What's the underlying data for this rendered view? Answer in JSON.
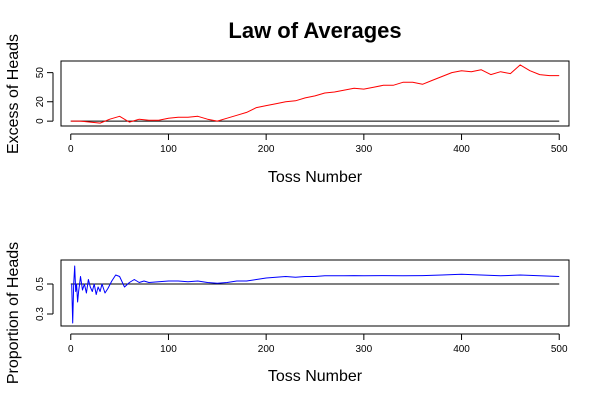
{
  "chart_data": [
    {
      "type": "line",
      "title": "Law of Averages",
      "xlabel": "Toss Number",
      "ylabel": "Excess of Heads",
      "xlim": [
        -10,
        510
      ],
      "ylim": [
        -5,
        62
      ],
      "xticks": [
        0,
        100,
        200,
        300,
        400,
        500
      ],
      "xtick_labels": [
        "0",
        "100",
        "200",
        "300",
        "400",
        "500"
      ],
      "yticks": [
        0,
        20,
        50
      ],
      "ytick_labels": [
        "0",
        "20",
        "50"
      ],
      "reference_line": 0,
      "reference_color": "#000000",
      "series": [
        {
          "color": "#ff0000",
          "x": [
            0,
            10,
            20,
            30,
            40,
            50,
            60,
            70,
            80,
            90,
            100,
            110,
            120,
            130,
            140,
            150,
            160,
            170,
            180,
            190,
            200,
            210,
            220,
            230,
            240,
            250,
            260,
            270,
            280,
            290,
            300,
            310,
            320,
            330,
            340,
            350,
            360,
            370,
            380,
            390,
            400,
            410,
            420,
            430,
            440,
            450,
            460,
            470,
            480,
            490,
            500
          ],
          "y": [
            0,
            0,
            -1,
            -2,
            2,
            5,
            -1,
            2,
            1,
            1,
            3,
            4,
            4,
            5,
            2,
            0,
            3,
            6,
            9,
            14,
            16,
            18,
            20,
            21,
            24,
            26,
            29,
            30,
            32,
            34,
            33,
            35,
            37,
            37,
            40,
            40,
            38,
            42,
            46,
            50,
            52,
            51,
            53,
            48,
            51,
            49,
            58,
            52,
            48,
            47,
            47
          ]
        }
      ]
    },
    {
      "type": "line",
      "title": "",
      "xlabel": "Toss Number",
      "ylabel": "Proportion of Heads",
      "xlim": [
        -10,
        510
      ],
      "ylim": [
        0.22,
        0.66
      ],
      "xticks": [
        0,
        100,
        200,
        300,
        400,
        500
      ],
      "xtick_labels": [
        "0",
        "100",
        "200",
        "300",
        "400",
        "500"
      ],
      "yticks": [
        0.3,
        0.5
      ],
      "ytick_labels": [
        "0.3",
        "0.5"
      ],
      "reference_line": 0.5,
      "reference_color": "#000000",
      "series": [
        {
          "color": "#0000ff",
          "x": [
            1,
            2,
            3,
            4,
            5,
            6,
            7,
            8,
            9,
            10,
            12,
            14,
            16,
            18,
            20,
            22,
            24,
            26,
            28,
            30,
            32,
            35,
            38,
            42,
            46,
            50,
            55,
            60,
            65,
            70,
            75,
            80,
            90,
            100,
            110,
            120,
            130,
            140,
            150,
            160,
            170,
            180,
            190,
            200,
            210,
            220,
            230,
            240,
            250,
            260,
            270,
            280,
            290,
            300,
            320,
            340,
            360,
            380,
            400,
            420,
            440,
            460,
            480,
            500
          ],
          "y": [
            0.5,
            0.24,
            0.5,
            0.62,
            0.45,
            0.5,
            0.38,
            0.45,
            0.5,
            0.55,
            0.46,
            0.5,
            0.44,
            0.53,
            0.48,
            0.45,
            0.5,
            0.43,
            0.48,
            0.45,
            0.5,
            0.44,
            0.47,
            0.52,
            0.56,
            0.55,
            0.48,
            0.51,
            0.53,
            0.51,
            0.52,
            0.51,
            0.515,
            0.52,
            0.52,
            0.515,
            0.52,
            0.51,
            0.505,
            0.51,
            0.52,
            0.52,
            0.53,
            0.54,
            0.545,
            0.55,
            0.545,
            0.55,
            0.55,
            0.555,
            0.555,
            0.555,
            0.556,
            0.555,
            0.556,
            0.555,
            0.556,
            0.56,
            0.565,
            0.56,
            0.555,
            0.56,
            0.555,
            0.55
          ]
        }
      ]
    }
  ]
}
